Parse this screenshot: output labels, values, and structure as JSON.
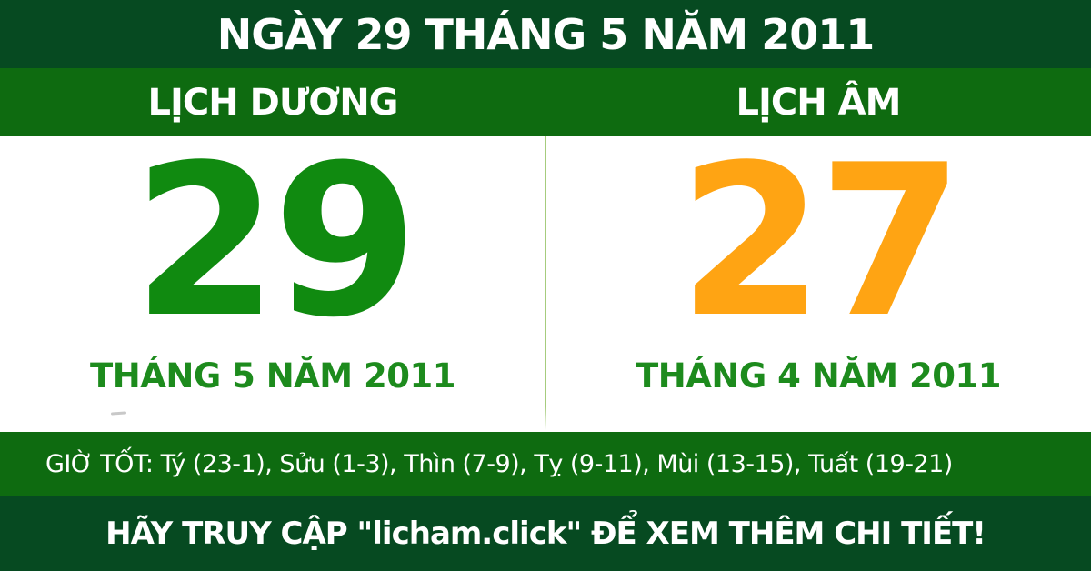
{
  "header": {
    "title": "NGÀY 29 THÁNG 5 NĂM 2011"
  },
  "calendars": {
    "solar": {
      "label": "LỊCH DƯƠNG",
      "day": "29",
      "month_year": "THÁNG 5 NĂM 2011"
    },
    "lunar": {
      "label": "LỊCH ÂM",
      "day": "27",
      "month_year": "THÁNG 4 NĂM 2011"
    }
  },
  "good_hours": {
    "text": "GIỜ TỐT: Tý (23-1), Sửu (1-3), Thìn (7-9), Tỵ (9-11), Mùi (13-15), Tuất (19-21)"
  },
  "footer": {
    "cta": "HÃY TRUY CẬP \"licham.click\" ĐỂ XEM THÊM CHI TIẾT!"
  },
  "colors": {
    "dark_green": "#064a21",
    "medium_green": "#0e6b10",
    "solar_day_green": "#108a10",
    "lunar_day_orange": "#ffa413",
    "month_label_green": "#1d8b1d",
    "divider_light_green": "#a6cc7d",
    "text_white": "#ffffff"
  }
}
